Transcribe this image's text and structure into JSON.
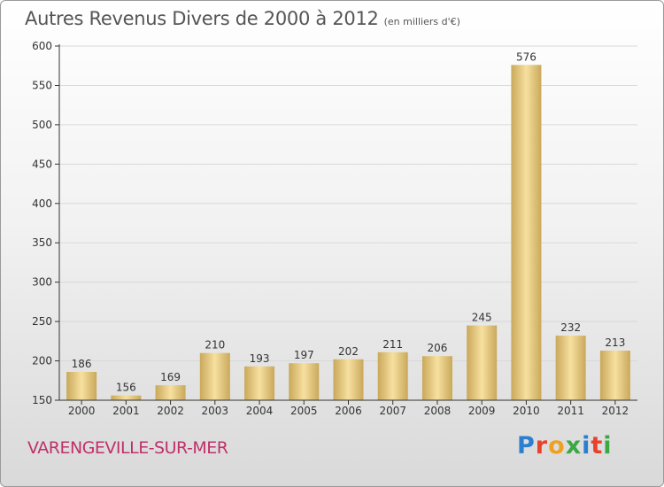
{
  "header": {
    "title": "Autres Revenus Divers de 2000 à 2012",
    "subtitle": "(en milliers d'€)"
  },
  "footer": {
    "commune": "VARENGEVILLE-SUR-MER",
    "logo_text": "Proxiti",
    "logo_colors": [
      "#2a7fd0",
      "#e8422c",
      "#f0a020",
      "#3aa845",
      "#2a7fd0",
      "#e8422c",
      "#3aa845"
    ]
  },
  "colors": {
    "bar_light": "#f7e0a0",
    "bar_dark": "#c9a85a",
    "gridline": "#d9d9d9",
    "axis": "#333333"
  },
  "chart_data": {
    "type": "bar",
    "categories": [
      "2000",
      "2001",
      "2002",
      "2003",
      "2004",
      "2005",
      "2006",
      "2007",
      "2008",
      "2009",
      "2010",
      "2011",
      "2012"
    ],
    "values": [
      186,
      156,
      169,
      210,
      193,
      197,
      202,
      211,
      206,
      245,
      576,
      232,
      213
    ],
    "title": "Autres Revenus Divers de 2000 à 2012",
    "subtitle": "(en milliers d'€)",
    "xlabel": "",
    "ylabel": "",
    "ylim": [
      150,
      600
    ],
    "yticks": [
      150,
      200,
      250,
      300,
      350,
      400,
      450,
      500,
      550,
      600
    ],
    "grid": true,
    "legend": "none"
  }
}
